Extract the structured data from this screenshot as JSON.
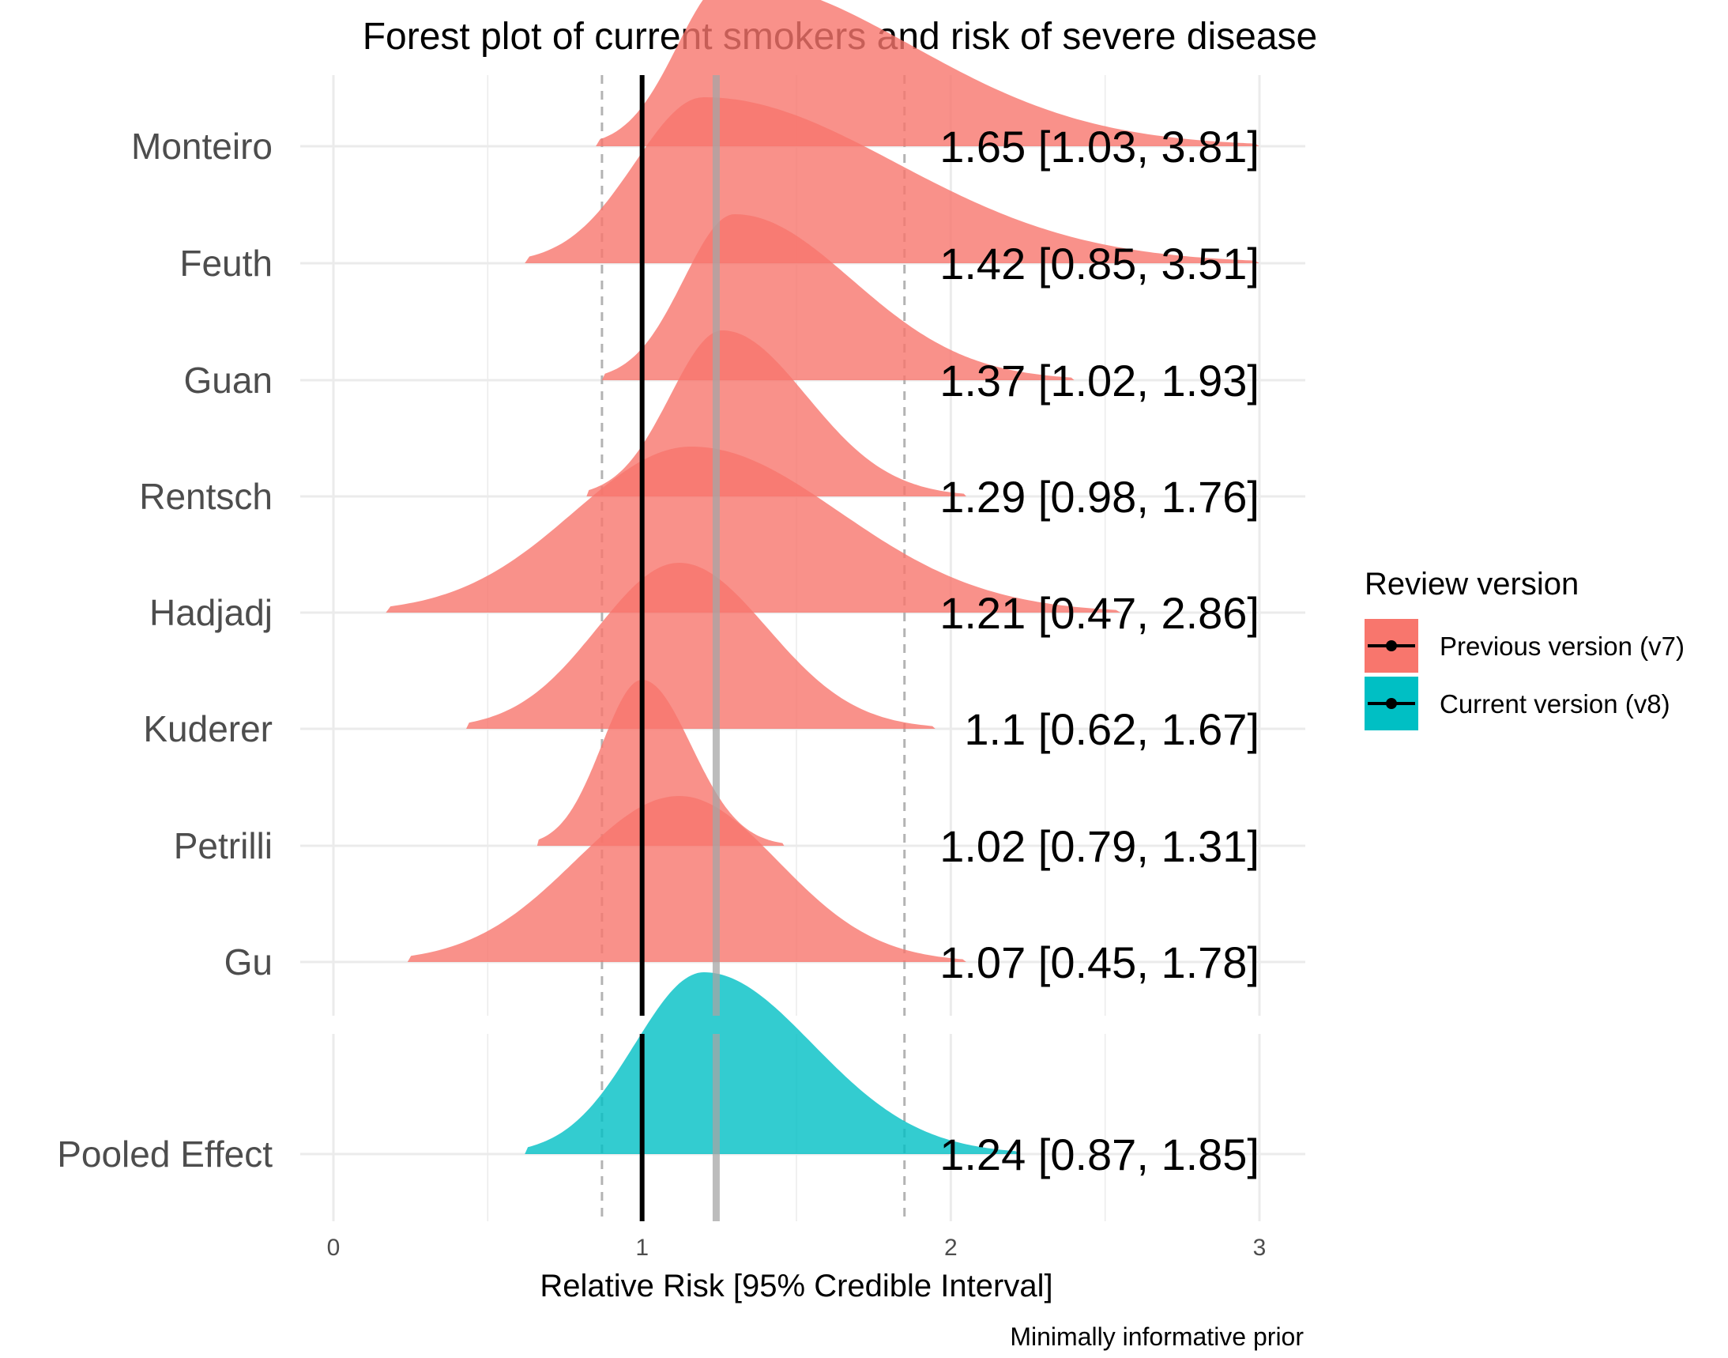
{
  "chart_data": {
    "type": "forest-density",
    "title": "Forest plot of current smokers and risk of severe disease",
    "xlabel": "Relative Risk [95% Credible Interval]",
    "caption": "Minimally informative prior",
    "xlim": [
      0,
      3
    ],
    "xticks": [
      0,
      1,
      2,
      3
    ],
    "xtick_labels": [
      "0",
      "1",
      "2",
      "3"
    ],
    "reference_line_x": 1,
    "pooled_estimate_x": 1.24,
    "pooled_interval_x": [
      0.87,
      1.85
    ],
    "legend": {
      "title": "Review version",
      "placement": "right",
      "items": [
        {
          "label": "Previous version (v7)",
          "color": "#F8766D"
        },
        {
          "label": "Current version (v8)",
          "color": "#00BFC4"
        }
      ]
    },
    "studies": [
      {
        "name": "Monteiro",
        "median": 1.65,
        "lower": 1.03,
        "upper": 3.81,
        "label": "1.65 [1.03, 3.81]",
        "version": "v7",
        "range": [
          0.85,
          3.0
        ],
        "mode": 1.28
      },
      {
        "name": "Feuth",
        "median": 1.42,
        "lower": 0.85,
        "upper": 3.51,
        "label": "1.42 [0.85, 3.51]",
        "version": "v7",
        "range": [
          0.62,
          3.0
        ],
        "mode": 1.2
      },
      {
        "name": "Guan",
        "median": 1.37,
        "lower": 1.02,
        "upper": 1.93,
        "label": "1.37 [1.02, 1.93]",
        "version": "v7",
        "range": [
          0.87,
          2.4
        ],
        "mode": 1.3
      },
      {
        "name": "Rentsch",
        "median": 1.29,
        "lower": 0.98,
        "upper": 1.76,
        "label": "1.29 [0.98, 1.76]",
        "version": "v7",
        "range": [
          0.82,
          2.05
        ],
        "mode": 1.26
      },
      {
        "name": "Hadjadj",
        "median": 1.21,
        "lower": 0.47,
        "upper": 2.86,
        "label": "1.21 [0.47, 2.86]",
        "version": "v7",
        "range": [
          0.17,
          2.55
        ],
        "mode": 1.16
      },
      {
        "name": "Kuderer",
        "median": 1.1,
        "lower": 0.62,
        "upper": 1.67,
        "label": "1.1 [0.62, 1.67]",
        "version": "v7",
        "range": [
          0.43,
          1.95
        ],
        "mode": 1.12
      },
      {
        "name": "Petrilli",
        "median": 1.02,
        "lower": 0.79,
        "upper": 1.31,
        "label": "1.02 [0.79, 1.31]",
        "version": "v7",
        "range": [
          0.66,
          1.46
        ],
        "mode": 1.0
      },
      {
        "name": "Gu",
        "median": 1.07,
        "lower": 0.45,
        "upper": 1.78,
        "label": "1.07 [0.45, 1.78]",
        "version": "v7",
        "range": [
          0.24,
          2.05
        ],
        "mode": 1.12
      }
    ],
    "pooled": {
      "name": "Pooled Effect",
      "median": 1.24,
      "lower": 0.87,
      "upper": 1.85,
      "label": "1.24 [0.87, 1.85]",
      "version": "v8",
      "range": [
        0.62,
        2.22
      ],
      "mode": 1.2
    }
  }
}
